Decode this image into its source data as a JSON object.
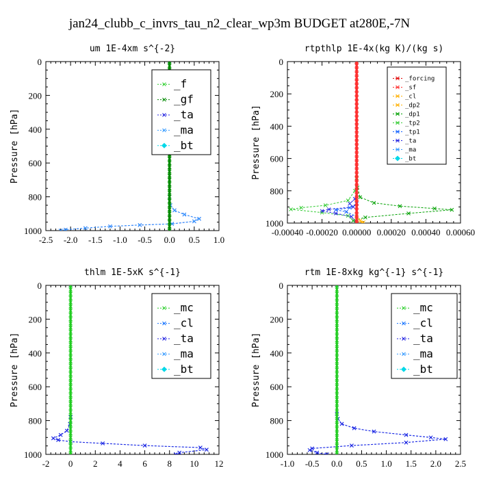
{
  "title": "jan24_clubb_c_invrs_tau_n2_clear_wp3m  BUDGET at280E,-7N",
  "colors": {
    "forcing": "#e00000",
    "sf": "#ff3030",
    "cl_yellow": "#ffb000",
    "dp2": "#ffb000",
    "dp1": "#00a000",
    "tp2": "#33cc33",
    "tp1": "#1060ff",
    "ta": "#2020e0",
    "ma": "#3399ff",
    "bt": "#00d8e8",
    "mc": "#22cc22",
    "f": "#22cc22",
    "gf": "#008800",
    "cl_blue": "#1070ff"
  },
  "chart_data": [
    {
      "type": "line",
      "title": "um  1E-4xm s^{-2}",
      "ylabel": "Pressure [hPa]",
      "xlim": [
        -2.5,
        1.0
      ],
      "ylim": [
        1000,
        0
      ],
      "xticks": [
        "-2.5",
        "-2.0",
        "-1.5",
        "-1.0",
        "-0.5",
        "0.0",
        "0.5",
        "1.0"
      ],
      "xtick_values": [
        -2.5,
        -2.0,
        -1.5,
        -1.0,
        -0.5,
        0.0,
        0.5,
        1.0
      ],
      "yticks": [
        "0",
        "200",
        "400",
        "600",
        "800",
        "1000"
      ],
      "ytick_values": [
        0,
        200,
        400,
        600,
        800,
        1000
      ],
      "legend": {
        "placement": "top-right",
        "size": "large",
        "entries": [
          "_f",
          "_gf",
          "_ta",
          "_ma",
          "_bt"
        ]
      },
      "series": [
        {
          "name": "_ta",
          "color_key": "ta",
          "style": "dashed",
          "points": [
            [
              0.0,
              0
            ],
            [
              0.0,
              800
            ],
            [
              0.02,
              850
            ],
            [
              0.1,
              880
            ],
            [
              0.3,
              905
            ],
            [
              0.6,
              930
            ],
            [
              0.5,
              945
            ],
            [
              0.05,
              960
            ],
            [
              -0.6,
              967
            ],
            [
              -1.2,
              975
            ],
            [
              -1.7,
              985
            ],
            [
              -2.1,
              995
            ],
            [
              -2.2,
              1000
            ]
          ]
        },
        {
          "name": "_ma",
          "color_key": "ma",
          "style": "dashed",
          "points": [
            [
              0.0,
              0
            ],
            [
              0.0,
              800
            ],
            [
              0.02,
              850
            ],
            [
              0.1,
              880
            ],
            [
              0.3,
              905
            ],
            [
              0.6,
              930
            ],
            [
              0.5,
              945
            ],
            [
              0.05,
              960
            ],
            [
              -0.6,
              967
            ],
            [
              -1.2,
              975
            ],
            [
              -1.7,
              985
            ],
            [
              -2.1,
              995
            ],
            [
              -2.2,
              1000
            ]
          ]
        },
        {
          "name": "_f",
          "color_key": "f",
          "style": "solid",
          "points": [
            [
              0.0,
              0
            ],
            [
              0.0,
              1000
            ]
          ]
        },
        {
          "name": "_gf",
          "color_key": "gf",
          "style": "solid",
          "points": [
            [
              0.0,
              0
            ],
            [
              0.0,
              1000
            ]
          ]
        }
      ]
    },
    {
      "type": "line",
      "title": "rtpthlp  1E-4x(kg K)/(kg s)",
      "ylabel": "Pressure [hPa]",
      "xlim": [
        -0.0004,
        0.0006
      ],
      "ylim": [
        1000,
        0
      ],
      "xticks": [
        "-0.00040",
        "-0.00020",
        "0.00000",
        "0.00020",
        "0.00040",
        "0.00060"
      ],
      "xtick_values": [
        -0.0004,
        -0.0002,
        0.0,
        0.0002,
        0.0004,
        0.0006
      ],
      "yticks": [
        "0",
        "200",
        "400",
        "600",
        "800",
        "1000"
      ],
      "ytick_values": [
        0,
        200,
        400,
        600,
        800,
        1000
      ],
      "legend": {
        "placement": "top-right",
        "size": "small",
        "entries": [
          "_forcing",
          "_sf",
          "_cl",
          "_dp2",
          "_dp1",
          "_tp2",
          "_tp1",
          "_ta",
          "_ma",
          "_bt"
        ]
      },
      "series": [
        {
          "name": "_dp1",
          "color_key": "dp1",
          "style": "dashed",
          "points": [
            [
              0.0,
              0
            ],
            [
              0.0,
              700
            ],
            [
              5e-06,
              780
            ],
            [
              2e-05,
              840
            ],
            [
              0.0001,
              875
            ],
            [
              0.00025,
              895
            ],
            [
              0.00045,
              910
            ],
            [
              0.00055,
              918
            ],
            [
              0.0003,
              940
            ],
            [
              5e-05,
              965
            ],
            [
              -2e-05,
              985
            ],
            [
              0.0,
              1000
            ]
          ]
        },
        {
          "name": "_tp2",
          "color_key": "tp2",
          "style": "dashed",
          "points": [
            [
              0.0,
              0
            ],
            [
              0.0,
              720
            ],
            [
              -1e-05,
              800
            ],
            [
              -5e-05,
              860
            ],
            [
              -0.00018,
              890
            ],
            [
              -0.00032,
              905
            ],
            [
              -0.00038,
              915
            ],
            [
              -0.0002,
              935
            ],
            [
              -5e-05,
              955
            ],
            [
              0.0,
              1000
            ]
          ]
        },
        {
          "name": "_ta",
          "color_key": "ta",
          "style": "dashed",
          "points": [
            [
              0.0,
              0
            ],
            [
              0.0,
              800
            ],
            [
              -1e-05,
              850
            ],
            [
              -4e-05,
              880
            ],
            [
              -2e-05,
              900
            ],
            [
              -0.00016,
              915
            ],
            [
              -0.0002,
              925
            ],
            [
              -0.00012,
              940
            ],
            [
              -3e-05,
              960
            ],
            [
              0.0,
              1000
            ]
          ]
        },
        {
          "name": "_tp1",
          "color_key": "tp1",
          "style": "dashed",
          "points": [
            [
              0.0,
              0
            ],
            [
              0.0,
              880
            ],
            [
              -4e-05,
              905
            ],
            [
              -0.00012,
              918
            ],
            [
              -6e-05,
              930
            ],
            [
              0.0,
              960
            ],
            [
              0.0,
              1000
            ]
          ]
        },
        {
          "name": "_cl",
          "color_key": "cl_yellow",
          "style": "dashed",
          "points": [
            [
              0.0,
              0
            ],
            [
              0.0,
              960
            ],
            [
              2e-05,
              985
            ],
            [
              4e-05,
              995
            ],
            [
              3e-05,
              1000
            ]
          ]
        },
        {
          "name": "_forcing",
          "color_key": "forcing",
          "style": "solid",
          "points": [
            [
              0.0,
              0
            ],
            [
              0.0,
              1000
            ]
          ]
        },
        {
          "name": "_sf",
          "color_key": "sf",
          "style": "solid",
          "points": [
            [
              0.0,
              0
            ],
            [
              0.0,
              1000
            ]
          ]
        }
      ]
    },
    {
      "type": "line",
      "title": "thlm  1E-5xK s^{-1}",
      "ylabel": "Pressure [hPa]",
      "xlim": [
        -2,
        12
      ],
      "ylim": [
        1000,
        0
      ],
      "xticks": [
        "-2",
        "0",
        "2",
        "4",
        "6",
        "8",
        "10",
        "12"
      ],
      "xtick_values": [
        -2,
        0,
        2,
        4,
        6,
        8,
        10,
        12
      ],
      "yticks": [
        "0",
        "200",
        "400",
        "600",
        "800",
        "1000"
      ],
      "ytick_values": [
        0,
        200,
        400,
        600,
        800,
        1000
      ],
      "legend": {
        "placement": "top-right",
        "size": "large",
        "entries": [
          "_mc",
          "_cl",
          "_ta",
          "_ma",
          "_bt"
        ]
      },
      "series": [
        {
          "name": "_cl",
          "color_key": "cl_blue",
          "style": "dashed",
          "points": [
            [
              0.0,
              0
            ],
            [
              0.0,
              780
            ],
            [
              -0.05,
              820
            ],
            [
              -0.3,
              860
            ],
            [
              -0.8,
              885
            ],
            [
              -1.4,
              905
            ],
            [
              -1.0,
              915
            ],
            [
              0.0,
              925
            ],
            [
              2.6,
              935
            ],
            [
              6.0,
              948
            ],
            [
              10.5,
              960
            ],
            [
              11.0,
              972
            ],
            [
              8.8,
              990
            ],
            [
              8.5,
              1000
            ]
          ]
        },
        {
          "name": "_ta",
          "color_key": "ta",
          "style": "dashed",
          "points": [
            [
              0.0,
              0
            ],
            [
              0.0,
              780
            ],
            [
              -0.05,
              820
            ],
            [
              -0.3,
              860
            ],
            [
              -0.8,
              885
            ],
            [
              -1.4,
              905
            ],
            [
              -1.0,
              915
            ],
            [
              0.0,
              925
            ],
            [
              2.6,
              935
            ],
            [
              6.0,
              948
            ],
            [
              10.5,
              960
            ],
            [
              11.0,
              972
            ],
            [
              8.8,
              990
            ],
            [
              8.5,
              1000
            ]
          ]
        },
        {
          "name": "_mc",
          "color_key": "mc",
          "style": "solid",
          "points": [
            [
              0.0,
              0
            ],
            [
              0.0,
              1000
            ]
          ]
        }
      ]
    },
    {
      "type": "line",
      "title": "rtm  1E-8xkg kg^{-1} s^{-1}",
      "ylabel": "Pressure [hPa]",
      "xlim": [
        -1.0,
        2.5
      ],
      "ylim": [
        1000,
        0
      ],
      "xticks": [
        "-1.0",
        "-0.5",
        "0.0",
        "0.5",
        "1.0",
        "1.5",
        "2.0",
        "2.5"
      ],
      "xtick_values": [
        -1.0,
        -0.5,
        0.0,
        0.5,
        1.0,
        1.5,
        2.0,
        2.5
      ],
      "yticks": [
        "0",
        "200",
        "400",
        "600",
        "800",
        "1000"
      ],
      "ytick_values": [
        0,
        200,
        400,
        600,
        800,
        1000
      ],
      "legend": {
        "placement": "top-right",
        "size": "large",
        "entries": [
          "_mc",
          "_cl",
          "_ta",
          "_ma",
          "_bt"
        ]
      },
      "series": [
        {
          "name": "_cl",
          "color_key": "cl_blue",
          "style": "dashed",
          "points": [
            [
              0.0,
              0
            ],
            [
              0.0,
              760
            ],
            [
              0.02,
              790
            ],
            [
              0.1,
              820
            ],
            [
              0.35,
              845
            ],
            [
              0.75,
              865
            ],
            [
              1.4,
              885
            ],
            [
              1.9,
              900
            ],
            [
              2.2,
              910
            ],
            [
              1.4,
              930
            ],
            [
              0.3,
              948
            ],
            [
              -0.5,
              965
            ],
            [
              -0.55,
              975
            ],
            [
              -0.4,
              990
            ],
            [
              -0.2,
              1000
            ]
          ]
        },
        {
          "name": "_ta",
          "color_key": "ta",
          "style": "dashed",
          "points": [
            [
              0.0,
              0
            ],
            [
              0.0,
              760
            ],
            [
              0.02,
              790
            ],
            [
              0.1,
              820
            ],
            [
              0.35,
              845
            ],
            [
              0.75,
              865
            ],
            [
              1.4,
              885
            ],
            [
              1.9,
              900
            ],
            [
              2.2,
              910
            ],
            [
              1.4,
              930
            ],
            [
              0.3,
              948
            ],
            [
              -0.5,
              965
            ],
            [
              -0.55,
              975
            ],
            [
              -0.4,
              990
            ],
            [
              -0.2,
              1000
            ]
          ]
        },
        {
          "name": "_mc",
          "color_key": "mc",
          "style": "solid",
          "points": [
            [
              0.0,
              0
            ],
            [
              0.0,
              1000
            ]
          ]
        }
      ]
    }
  ]
}
